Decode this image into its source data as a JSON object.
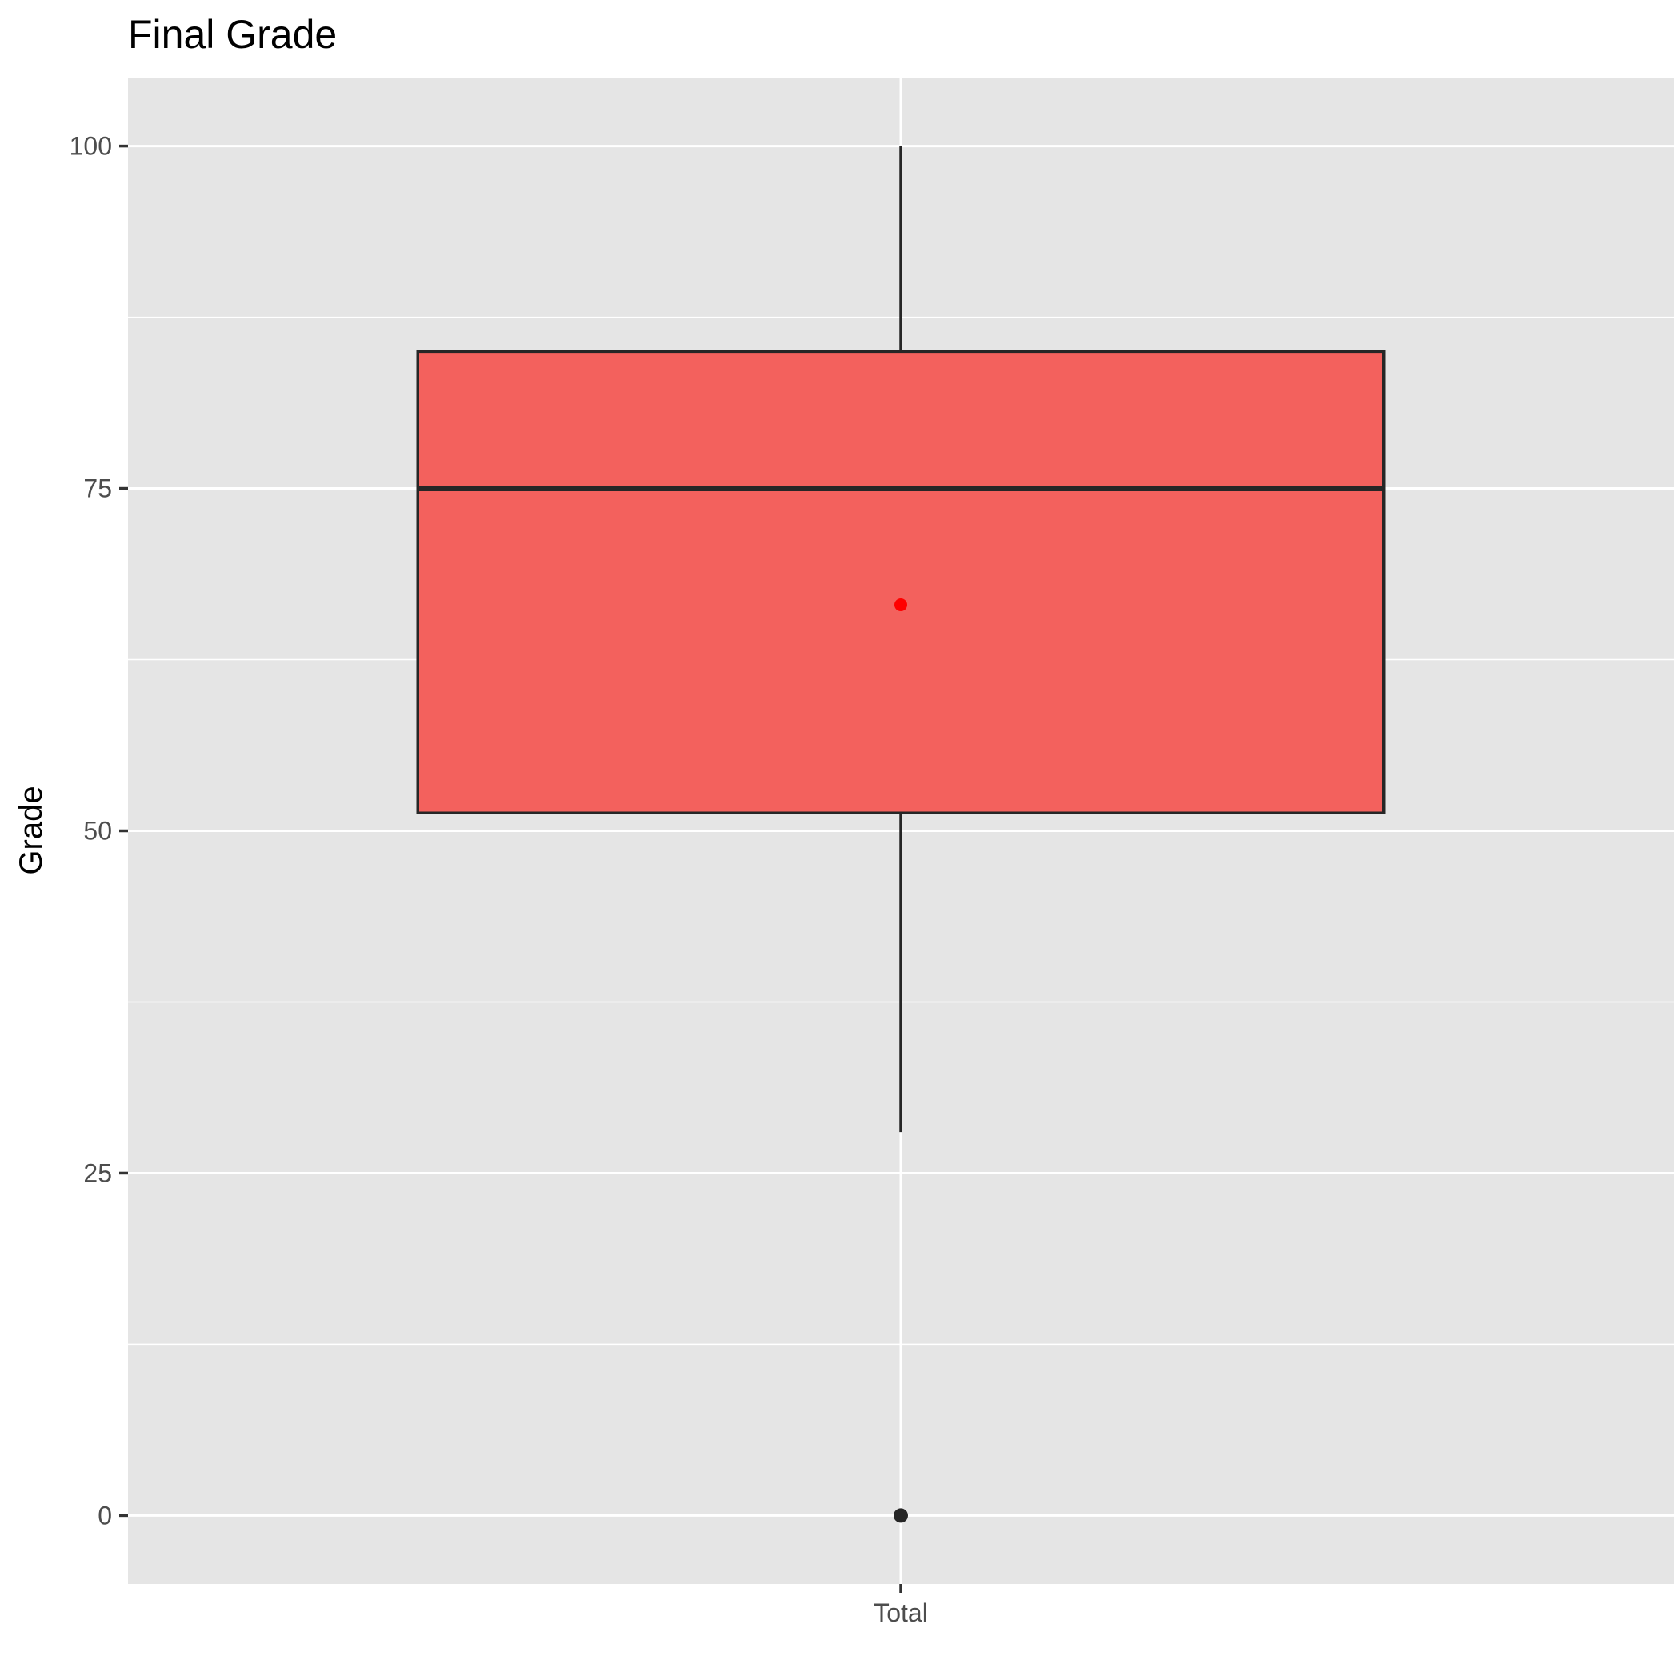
{
  "chart_data": {
    "type": "boxplot",
    "title": "Final Grade",
    "xlabel": "",
    "ylabel": "Grade",
    "categories": [
      "Total"
    ],
    "boxes": [
      {
        "category": "Total",
        "whisker_low": 28,
        "q1": 51.3,
        "median": 75,
        "q3": 85,
        "whisker_high": 100,
        "mean": 66.5,
        "outliers": [
          0
        ]
      }
    ],
    "y_ticks": [
      0,
      25,
      50,
      75,
      100
    ],
    "ylim": [
      -5,
      105
    ],
    "grid": true,
    "legend": "none",
    "colors": {
      "panel": "#e5e5e5",
      "grid": "#ffffff",
      "box_fill": "#f3615d",
      "box_stroke": "#262626",
      "mean_point": "#ff0000",
      "outlier_point": "#262626"
    }
  }
}
